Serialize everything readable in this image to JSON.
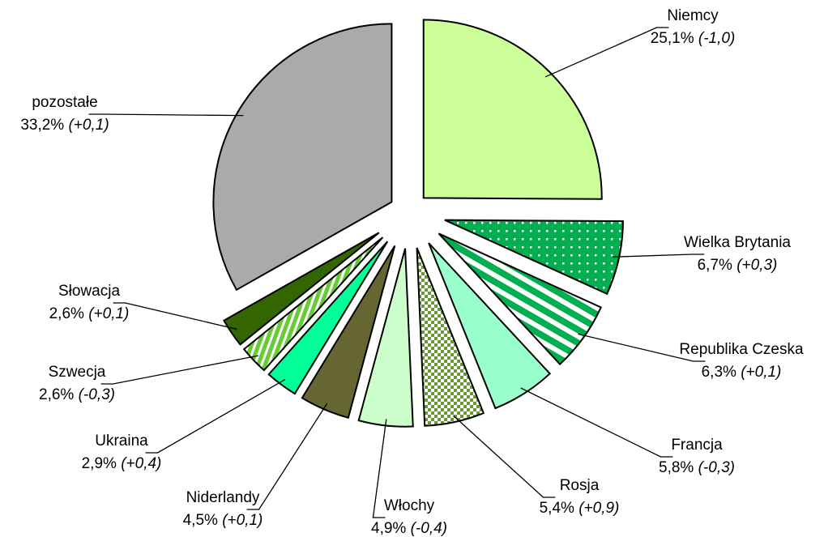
{
  "chart_data": {
    "type": "pie",
    "categories": [
      "Niemcy",
      "Wielka Brytania",
      "Republika Czeska",
      "Francja",
      "Rosja",
      "Włochy",
      "Niderlandy",
      "Ukraina",
      "Szwecja",
      "Słowacja",
      "pozostałe"
    ],
    "values": [
      25.1,
      6.7,
      6.3,
      5.8,
      5.4,
      4.9,
      4.5,
      2.9,
      2.6,
      2.6,
      33.2
    ],
    "value_labels": [
      "25,1%",
      "6,7%",
      "6,3%",
      "5,8%",
      "5,4%",
      "4,9%",
      "4,5%",
      "2,9%",
      "2,6%",
      "2,6%",
      "33,2%"
    ],
    "changes": [
      "(-1,0)",
      "(+0,3)",
      "(+0,1)",
      "(-0,3)",
      "(+0,9)",
      "(-0,4)",
      "(+0,1)",
      "(+0,4)",
      "(-0,3)",
      "(+0,1)",
      "(+0,1)"
    ],
    "colors": [
      "#ccff99",
      "#00b050",
      "#00b050",
      "#99ffcc",
      "#669933",
      "#ccffcc",
      "#666633",
      "#00ff99",
      "#66cc33",
      "#336600",
      "#aaaaaa"
    ],
    "patterns": [
      null,
      "dots",
      "hstripes",
      null,
      "checker",
      null,
      null,
      null,
      "vstripes",
      null,
      null
    ]
  }
}
